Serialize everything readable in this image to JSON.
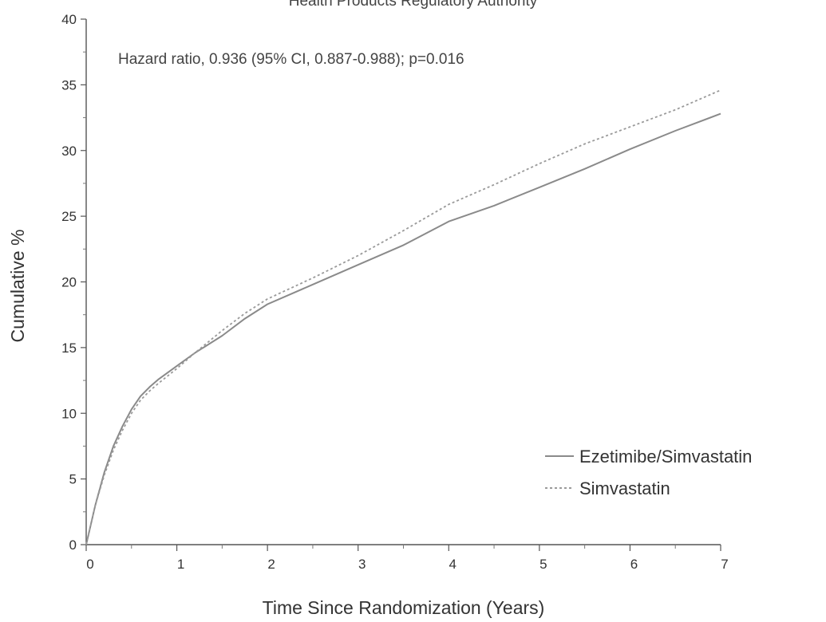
{
  "header": {
    "text": "Health Products Regulatory Authority"
  },
  "chart_data": {
    "type": "line",
    "title": "",
    "annotation": "Hazard ratio, 0.936 (95% CI, 0.887-0.988); p=0.016",
    "xlabel": "Time Since Randomization (Years)",
    "ylabel": "Cumulative %",
    "xlim": [
      0,
      7
    ],
    "ylim": [
      0,
      40
    ],
    "x_ticks": [
      "0",
      "1",
      "2",
      "3",
      "4",
      "5",
      "6",
      "7"
    ],
    "y_ticks": [
      "0",
      "5",
      "10",
      "15",
      "20",
      "25",
      "30",
      "35",
      "40"
    ],
    "grid": false,
    "legend_position": "bottom-right",
    "series": [
      {
        "name": "Ezetimibe/Simvastatin",
        "style": "solid",
        "color": "#8a8a8a",
        "x": [
          0,
          0.05,
          0.1,
          0.2,
          0.3,
          0.4,
          0.5,
          0.6,
          0.7,
          0.8,
          1.0,
          1.2,
          1.5,
          1.75,
          2.0,
          2.5,
          3.0,
          3.5,
          4.0,
          4.5,
          5.0,
          5.5,
          6.0,
          6.5,
          7.0
        ],
        "y": [
          0,
          1.5,
          3.0,
          5.5,
          7.5,
          9.0,
          10.3,
          11.3,
          12.0,
          12.6,
          13.6,
          14.6,
          15.9,
          17.2,
          18.3,
          19.8,
          21.3,
          22.8,
          24.6,
          25.8,
          27.2,
          28.6,
          30.1,
          31.5,
          32.8
        ]
      },
      {
        "name": "Simvastatin",
        "style": "dashed",
        "color": "#9a9a9a",
        "x": [
          0,
          0.05,
          0.1,
          0.2,
          0.3,
          0.4,
          0.5,
          0.6,
          0.7,
          0.8,
          1.0,
          1.2,
          1.5,
          1.75,
          2.0,
          2.5,
          3.0,
          3.5,
          4.0,
          4.5,
          5.0,
          5.5,
          6.0,
          6.5,
          7.0
        ],
        "y": [
          0,
          1.5,
          3.0,
          5.3,
          7.2,
          8.7,
          10.0,
          11.0,
          11.7,
          12.3,
          13.4,
          14.6,
          16.3,
          17.6,
          18.7,
          20.3,
          22.0,
          23.9,
          25.9,
          27.4,
          29.0,
          30.5,
          31.8,
          33.1,
          34.6
        ]
      }
    ]
  }
}
